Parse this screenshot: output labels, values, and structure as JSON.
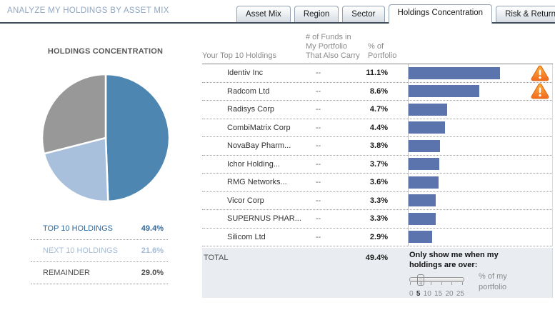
{
  "header": {
    "title": "ANALYZE MY HOLDINGS BY ASSET MIX",
    "tabs": [
      {
        "label": "Asset Mix",
        "active": false
      },
      {
        "label": "Region",
        "active": false
      },
      {
        "label": "Sector",
        "active": false
      },
      {
        "label": "Holdings Concentration",
        "active": true
      },
      {
        "label": "Risk & Return",
        "active": false
      }
    ]
  },
  "pie_panel": {
    "title": "HOLDINGS CONCENTRATION",
    "legend": [
      {
        "label": "TOP 10 HOLDINGS",
        "value": "49.4%",
        "color": "#31679A"
      },
      {
        "label": "NEXT 10 HOLDINGS",
        "value": "21.6%",
        "color": "#A4BCD8"
      },
      {
        "label": "REMAINDER",
        "value": "29.0%",
        "color": "#4D4D4D"
      }
    ]
  },
  "chart_data": [
    {
      "type": "pie",
      "title": "HOLDINGS CONCENTRATION",
      "labels": [
        "TOP 10 HOLDINGS",
        "NEXT 10 HOLDINGS",
        "REMAINDER"
      ],
      "values": [
        49.4,
        21.6,
        29.0
      ],
      "colors": [
        "#4E86B2",
        "#A8C0DC",
        "#989898"
      ],
      "start_angle_deg": 0,
      "direction": "clockwise",
      "legend_position": "below"
    },
    {
      "type": "bar",
      "orientation": "horizontal",
      "categories": [
        "Identiv Inc",
        "Radcom Ltd",
        "Radisys Corp",
        "CombiMatrix Corp",
        "NovaBay Pharm...",
        "Ichor Holding...",
        "RMG Networks...",
        "Vicor Corp",
        "SUPERNUS PHAR...",
        "Silicom Ltd"
      ],
      "values": [
        11.1,
        8.6,
        4.7,
        4.4,
        3.8,
        3.7,
        3.6,
        3.3,
        3.3,
        2.9
      ],
      "bar_color": "#5B74AD",
      "xlim": [
        0,
        14.4
      ],
      "grid": false,
      "warning_rows": [
        0,
        1
      ]
    }
  ],
  "table": {
    "col_holdings": "Your Top 10 Holdings",
    "col_funds": [
      "# of Funds in",
      "My Portfolio",
      "That Also Carry"
    ],
    "col_pct": [
      "% of",
      "Portfolio"
    ],
    "rows": [
      {
        "name": "Identiv Inc",
        "funds": "--",
        "pct": "11.1%",
        "value": 11.1,
        "warning": true
      },
      {
        "name": "Radcom Ltd",
        "funds": "--",
        "pct": "8.6%",
        "value": 8.6,
        "warning": true
      },
      {
        "name": "Radisys Corp",
        "funds": "--",
        "pct": "4.7%",
        "value": 4.7,
        "warning": false
      },
      {
        "name": "CombiMatrix Corp",
        "funds": "--",
        "pct": "4.4%",
        "value": 4.4,
        "warning": false
      },
      {
        "name": "NovaBay Pharm...",
        "funds": "--",
        "pct": "3.8%",
        "value": 3.8,
        "warning": false
      },
      {
        "name": "Ichor Holding...",
        "funds": "--",
        "pct": "3.7%",
        "value": 3.7,
        "warning": false
      },
      {
        "name": "RMG Networks...",
        "funds": "--",
        "pct": "3.6%",
        "value": 3.6,
        "warning": false
      },
      {
        "name": "Vicor Corp",
        "funds": "--",
        "pct": "3.3%",
        "value": 3.3,
        "warning": false
      },
      {
        "name": "SUPERNUS PHAR...",
        "funds": "--",
        "pct": "3.3%",
        "value": 3.3,
        "warning": false
      },
      {
        "name": "Silicom Ltd",
        "funds": "--",
        "pct": "2.9%",
        "value": 2.9,
        "warning": false
      }
    ],
    "total_label": "TOTAL",
    "total_value": "49.4%"
  },
  "filter": {
    "prompt_line1": "Only show me when my",
    "prompt_line2": "holdings are over:",
    "tick_labels": [
      "0",
      "5",
      "10",
      "15",
      "20",
      "25"
    ],
    "selected_value": "5",
    "slider_min": 0,
    "slider_max": 25,
    "suffix_line1": "% of my",
    "suffix_line2": "portfolio"
  },
  "colors": {
    "bar": "#5B74AD",
    "footer_bg": "#E9EDF2",
    "header_title": "#92A7C2",
    "warning_orange": "#F58220"
  }
}
